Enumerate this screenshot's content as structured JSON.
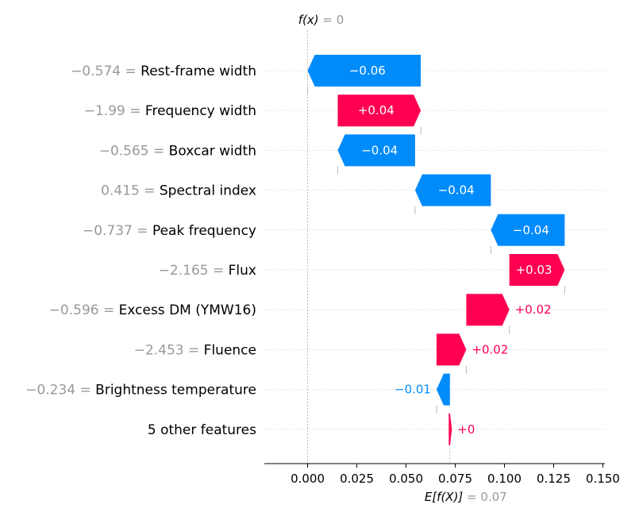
{
  "chart_data": {
    "type": "waterfall",
    "top_label": {
      "name": "f(x)",
      "value": "0"
    },
    "bottom_label": {
      "name": "E[f(X)]",
      "value": "0.07"
    },
    "base_value": 0.0723,
    "final_value": 0.0,
    "xlim": [
      -0.022,
      0.151
    ],
    "xticks": [
      0.0,
      0.025,
      0.05,
      0.075,
      0.1,
      0.125,
      0.15
    ],
    "xtick_labels": [
      "0.000",
      "0.025",
      "0.050",
      "0.075",
      "0.100",
      "0.125",
      "0.150"
    ],
    "colors": {
      "positive": "#ff0051",
      "negative": "#008bfb",
      "feature_value": "#999999"
    },
    "features": [
      {
        "value_text": "−0.574",
        "name": "Rest-frame width",
        "start": 0.0575,
        "end": 0.0,
        "label": "−0.06"
      },
      {
        "value_text": "−1.99",
        "name": "Frequency width",
        "start": 0.0153,
        "end": 0.0575,
        "label": "+0.04"
      },
      {
        "value_text": "−0.565",
        "name": "Boxcar width",
        "start": 0.0546,
        "end": 0.0153,
        "label": "−0.04"
      },
      {
        "value_text": "0.415",
        "name": "Spectral index",
        "start": 0.0931,
        "end": 0.0546,
        "label": "−0.04"
      },
      {
        "value_text": "−0.737",
        "name": "Peak frequency",
        "start": 0.1306,
        "end": 0.0931,
        "label": "−0.04"
      },
      {
        "value_text": "−2.165",
        "name": "Flux",
        "start": 0.1025,
        "end": 0.1306,
        "label": "+0.03"
      },
      {
        "value_text": "−0.596",
        "name": "Excess DM (YMW16)",
        "start": 0.0806,
        "end": 0.1025,
        "label": "+0.02"
      },
      {
        "value_text": "−2.453",
        "name": "Fluence",
        "start": 0.0655,
        "end": 0.0806,
        "label": "+0.02"
      },
      {
        "value_text": "−0.234",
        "name": "Brightness temperature",
        "start": 0.0723,
        "end": 0.0655,
        "label": "−0.01"
      },
      {
        "value_text": "",
        "name": "5 other features",
        "start": 0.0717,
        "end": 0.0733,
        "label": "+0"
      }
    ]
  }
}
